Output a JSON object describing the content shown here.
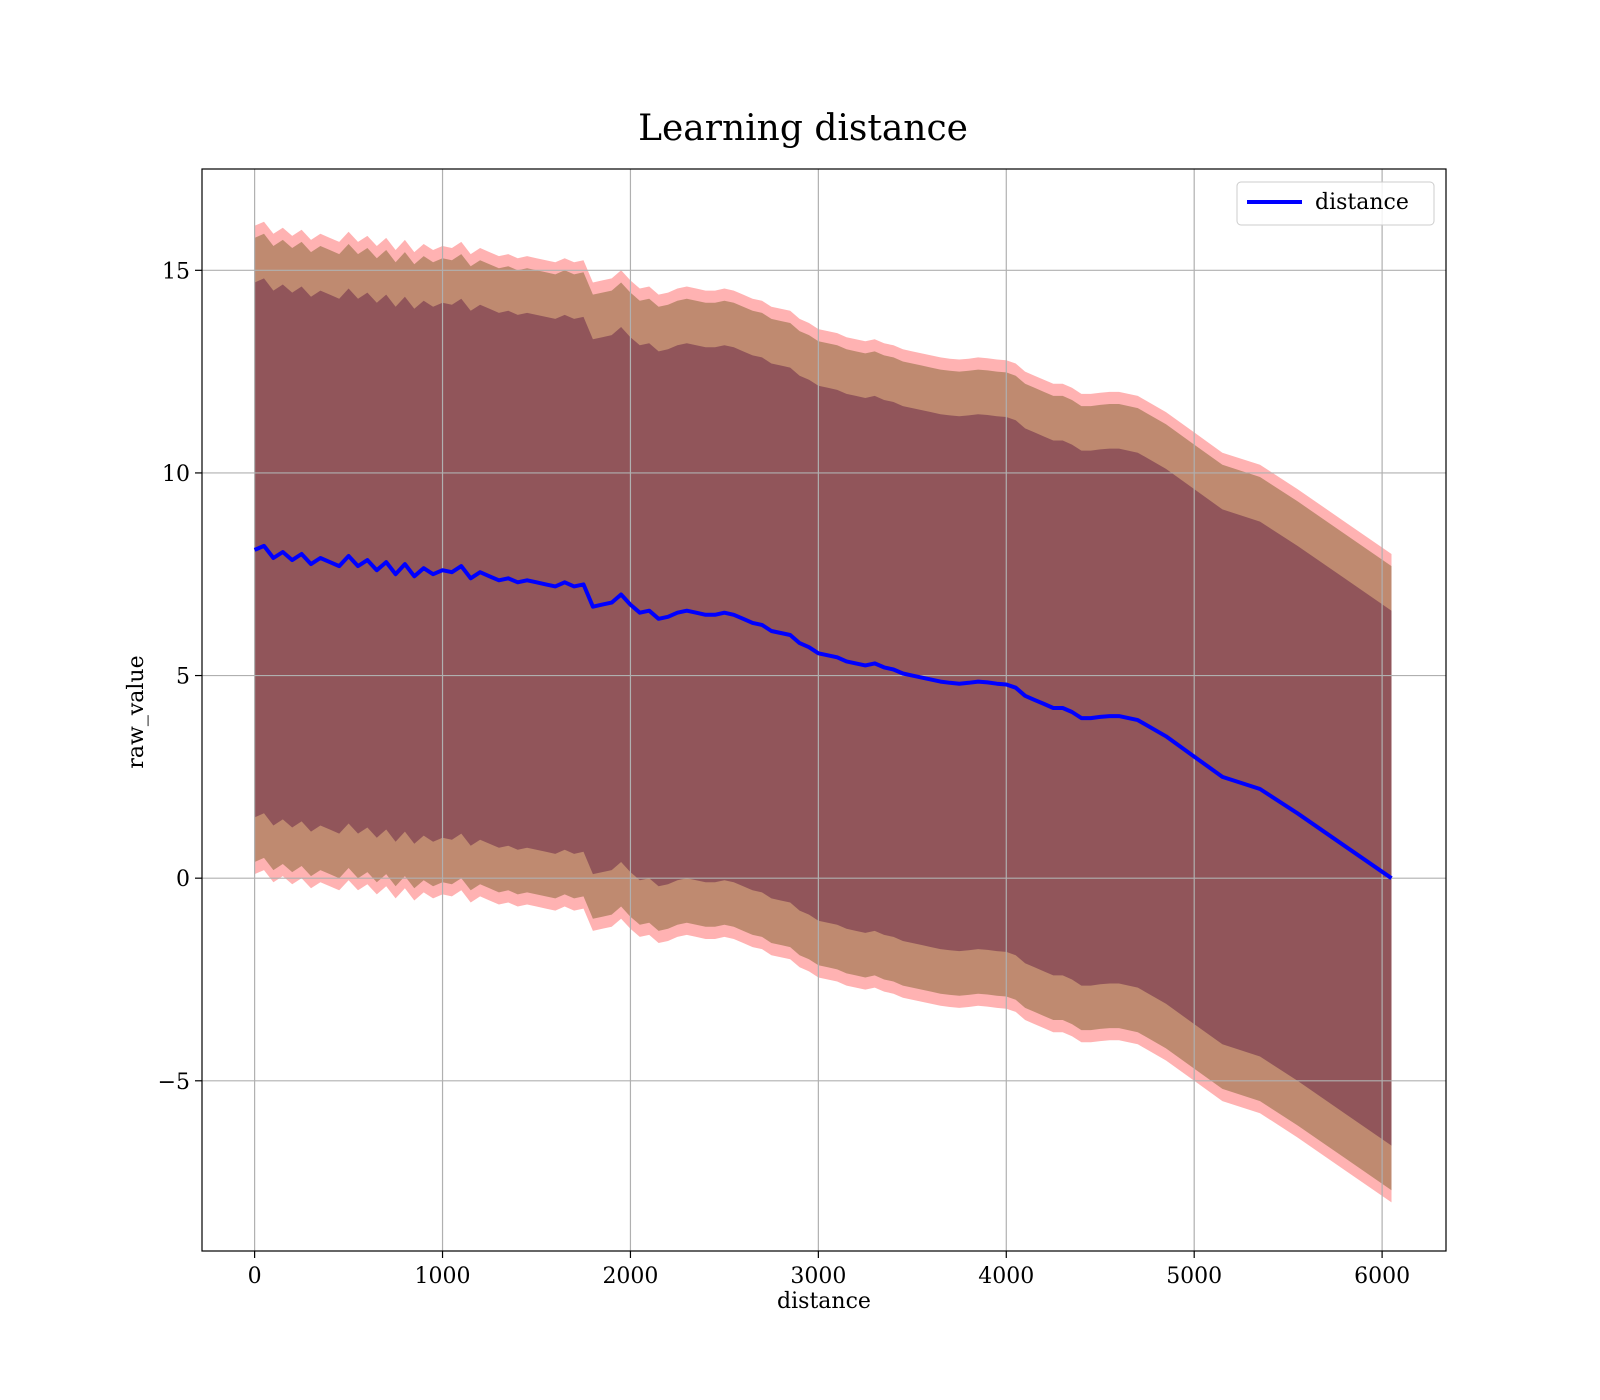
{
  "chart_data": {
    "type": "line",
    "title": "Learning distance",
    "xlabel": "distance",
    "ylabel": "raw_value",
    "xlim": [
      -280,
      6340
    ],
    "ylim": [
      -9.2,
      17.5
    ],
    "xticks": [
      0,
      1000,
      2000,
      3000,
      4000,
      5000,
      6000
    ],
    "xtick_labels": [
      "0",
      "1000",
      "2000",
      "3000",
      "4000",
      "5000",
      "6000"
    ],
    "yticks": [
      -5,
      0,
      5,
      10,
      15
    ],
    "ytick_labels": [
      "−5",
      "0",
      "5",
      "10",
      "15"
    ],
    "grid": true,
    "legend": {
      "position": "upper right",
      "entries": [
        "distance"
      ]
    },
    "colors": {
      "line": "#0000ff",
      "outer_band": "#ff0000",
      "middle_band": "#8b6a3a",
      "inner_band": "#6b2a48",
      "grid": "#b0b0b0"
    },
    "series": [
      {
        "name": "distance",
        "x": [
          0,
          50,
          100,
          150,
          200,
          250,
          300,
          350,
          400,
          450,
          500,
          550,
          600,
          650,
          700,
          750,
          800,
          850,
          900,
          950,
          1000,
          1050,
          1100,
          1150,
          1200,
          1250,
          1300,
          1350,
          1400,
          1450,
          1500,
          1550,
          1600,
          1650,
          1700,
          1750,
          1800,
          1850,
          1900,
          1950,
          2000,
          2050,
          2100,
          2150,
          2200,
          2250,
          2300,
          2350,
          2400,
          2450,
          2500,
          2550,
          2600,
          2650,
          2700,
          2750,
          2800,
          2850,
          2900,
          2950,
          3000,
          3050,
          3100,
          3150,
          3200,
          3250,
          3300,
          3350,
          3400,
          3450,
          3500,
          3550,
          3600,
          3650,
          3700,
          3750,
          3800,
          3850,
          3900,
          3950,
          4000,
          4050,
          4100,
          4150,
          4200,
          4250,
          4300,
          4350,
          4400,
          4450,
          4500,
          4550,
          4600,
          4700,
          4850,
          5000,
          5150,
          5350,
          5550,
          5800,
          6050
        ],
        "y": [
          8.1,
          8.2,
          7.9,
          8.05,
          7.85,
          8.0,
          7.75,
          7.9,
          7.8,
          7.7,
          7.95,
          7.7,
          7.85,
          7.6,
          7.8,
          7.5,
          7.75,
          7.45,
          7.65,
          7.5,
          7.6,
          7.55,
          7.7,
          7.4,
          7.55,
          7.45,
          7.35,
          7.4,
          7.3,
          7.35,
          7.3,
          7.25,
          7.2,
          7.3,
          7.2,
          7.25,
          6.7,
          6.75,
          6.8,
          7.0,
          6.75,
          6.55,
          6.6,
          6.4,
          6.45,
          6.55,
          6.6,
          6.55,
          6.5,
          6.5,
          6.55,
          6.5,
          6.4,
          6.3,
          6.25,
          6.1,
          6.05,
          6.0,
          5.8,
          5.7,
          5.55,
          5.5,
          5.45,
          5.35,
          5.3,
          5.25,
          5.3,
          5.2,
          5.15,
          5.05,
          5.0,
          4.95,
          4.9,
          4.85,
          4.82,
          4.8,
          4.82,
          4.85,
          4.83,
          4.8,
          4.78,
          4.7,
          4.5,
          4.4,
          4.3,
          4.2,
          4.2,
          4.1,
          3.95,
          3.95,
          3.98,
          4.0,
          4.0,
          3.9,
          3.5,
          3.0,
          2.5,
          2.2,
          1.6,
          0.8,
          0.0
        ]
      }
    ],
    "bands": [
      {
        "label": "outer",
        "lower_offset": [
          8.0,
          8.0,
          8.0,
          8.0,
          8.0,
          8.0,
          8.0,
          8.0,
          8.0,
          8.0,
          8.0,
          8.0,
          8.0,
          8.0,
          8.0,
          8.0,
          8.0,
          8.0,
          8.0,
          8.0,
          8.0,
          8.0,
          8.0,
          8.0,
          8.0,
          8.0,
          8.0,
          8.0,
          8.0,
          8.0,
          8.0,
          8.0,
          8.0,
          8.0,
          8.0,
          8.0,
          8.0,
          8.0,
          8.0,
          8.0,
          8.0,
          8.0,
          8.0,
          8.0,
          8.0,
          8.0,
          8.0,
          8.0,
          8.0,
          8.0,
          8.0,
          8.0,
          8.0,
          8.0,
          8.0,
          8.0,
          8.0,
          8.0,
          8.0,
          8.0,
          8.0,
          8.0,
          8.0,
          8.0,
          8.0,
          8.0,
          8.0,
          8.0,
          8.0,
          8.0,
          8.0,
          8.0,
          8.0,
          8.0,
          8.0,
          8.0,
          8.0,
          8.0,
          8.0,
          8.0,
          8.0,
          8.0,
          8.0,
          8.0,
          8.0,
          8.0,
          8.0,
          8.0,
          8.0,
          8.0,
          8.0,
          8.0,
          8.0,
          8.0,
          8.0,
          8.0,
          8.0,
          8.0,
          8.0,
          8.0,
          8.0
        ]
      },
      {
        "label": "middle",
        "half_width": 7.7
      },
      {
        "label": "inner",
        "half_width": 6.6
      }
    ]
  }
}
